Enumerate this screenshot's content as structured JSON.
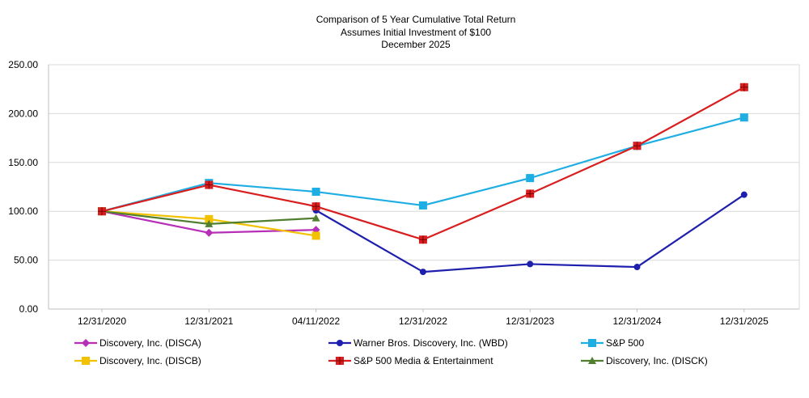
{
  "chart_data": {
    "type": "line",
    "title_lines": [
      "Comparison of 5 Year Cumulative Total Return",
      "Assumes Initial Investment of $100",
      "December 2025"
    ],
    "categories": [
      "12/31/2020",
      "12/31/2021",
      "04/11/2022",
      "12/31/2022",
      "12/31/2023",
      "12/31/2024",
      "12/31/2025"
    ],
    "ylim": [
      0,
      250
    ],
    "yticks": [
      "0.00",
      "50.00",
      "100.00",
      "150.00",
      "200.00",
      "250.00"
    ],
    "grid": true,
    "legend_position": "bottom",
    "series": [
      {
        "name": "Discovery, Inc. (DISCA)",
        "color": "#b62fb6",
        "marker": "diamond",
        "values": [
          100,
          78,
          81,
          null,
          null,
          null,
          null
        ]
      },
      {
        "name": "Warner Bros. Discovery, Inc. (WBD)",
        "color": "#1f1fae",
        "marker": "circle",
        "values": [
          null,
          null,
          101,
          38,
          46,
          43,
          117
        ]
      },
      {
        "name": "S&P 500",
        "color": "#1eaee3",
        "marker": "square",
        "values": [
          100,
          129,
          120,
          106,
          134,
          167,
          196
        ]
      },
      {
        "name": "Discovery, Inc. (DISCB)",
        "color": "#f2c200",
        "marker": "square",
        "values": [
          100,
          92,
          75,
          null,
          null,
          null,
          null
        ]
      },
      {
        "name": "S&P 500 Media & Entertainment",
        "color": "#d81e1e",
        "marker": "square-cross",
        "values": [
          100,
          127,
          105,
          71,
          118,
          167,
          227
        ]
      },
      {
        "name": "Discovery, Inc. (DISCK)",
        "color": "#4f7f2f",
        "marker": "triangle",
        "values": [
          100,
          87,
          93,
          null,
          null,
          null,
          null
        ]
      }
    ]
  }
}
